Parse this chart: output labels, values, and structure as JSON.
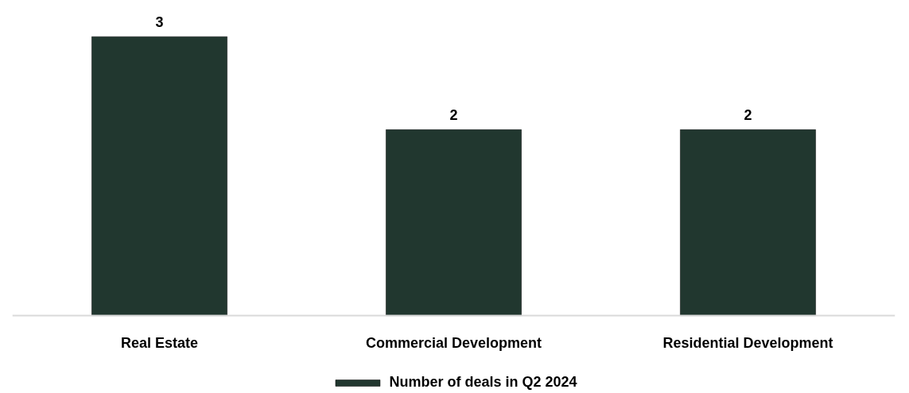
{
  "chart_data": {
    "type": "bar",
    "categories": [
      "Real Estate",
      "Commercial Development",
      "Residential Development"
    ],
    "series": [
      {
        "name": "Number of deals in Q2 2024",
        "color": "#21372f",
        "values": [
          3,
          2,
          2
        ]
      }
    ],
    "data_labels": true,
    "legend": "bottom"
  }
}
